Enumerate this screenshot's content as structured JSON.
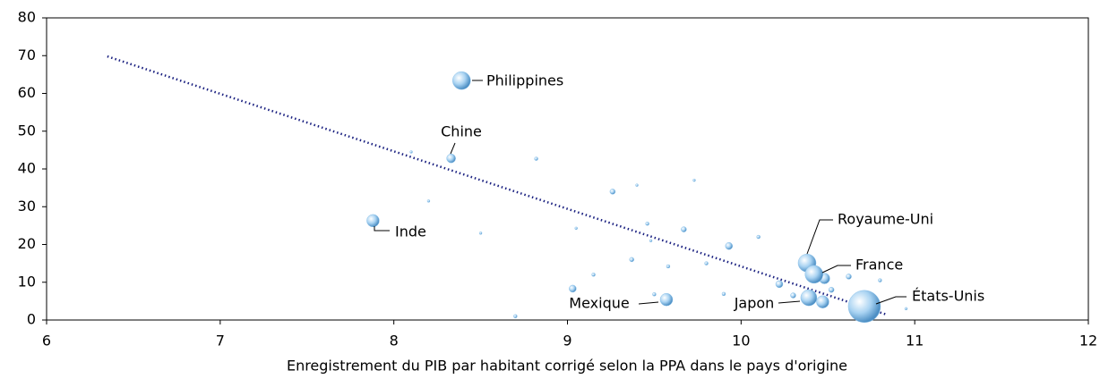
{
  "chart_data": {
    "type": "scatter",
    "x_label": "Enregistrement du PIB par habitant corrigé selon la PPA dans le pays d'origine",
    "xlim": [
      6,
      12
    ],
    "xticks": [
      6,
      7,
      8,
      9,
      10,
      11,
      12
    ],
    "ylim": [
      0,
      80
    ],
    "yticks": [
      0,
      10,
      20,
      30,
      40,
      50,
      60,
      70,
      80
    ],
    "color": "#8fc3ea",
    "trend_color": "#1a2080",
    "trend": {
      "x": [
        6.35,
        10.84
      ],
      "y": [
        69.8,
        1.4
      ]
    },
    "labels": [
      "Philippines",
      "Chine",
      "Inde",
      "Mexique",
      "Japon",
      "Royaume-Uni",
      "France",
      "États-Unis",
      null,
      null,
      null,
      null,
      null,
      null,
      null,
      null,
      null,
      null,
      null,
      null,
      null,
      null,
      null,
      null,
      null,
      null,
      null,
      null,
      null,
      null,
      null,
      null,
      null,
      null,
      null,
      null,
      null
    ],
    "x": [
      8.39,
      8.33,
      7.88,
      9.57,
      10.39,
      10.38,
      10.42,
      10.71,
      9.26,
      9.4,
      8.82,
      9.03,
      9.48,
      9.46,
      9.58,
      9.67,
      9.73,
      9.93,
      10.1,
      10.22,
      10.62,
      10.48,
      10.47,
      10.52,
      9.37,
      9.15,
      9.5,
      8.7,
      9.9,
      10.8,
      10.95,
      8.5,
      9.8,
      10.3,
      8.2,
      8.1,
      9.05
    ],
    "y": [
      63.4,
      42.8,
      26.3,
      5.4,
      5.9,
      15.1,
      12.1,
      3.6,
      34,
      35.7,
      42.7,
      8.3,
      21,
      25.5,
      14.2,
      24,
      37,
      19.6,
      22,
      9.5,
      11.5,
      11,
      4.8,
      8,
      16,
      12,
      6.8,
      1,
      6.9,
      10.5,
      3,
      23,
      15,
      6.5,
      31.5,
      44.5,
      24.3
    ],
    "sizes": [
      10,
      5,
      7,
      7,
      9,
      10,
      10,
      18,
      3,
      1.5,
      2,
      4,
      1.5,
      2,
      2,
      3,
      1.5,
      4,
      2,
      4,
      3,
      6,
      7,
      3,
      2.5,
      2,
      2,
      2,
      2,
      2,
      1.5,
      1.5,
      2,
      3,
      1.5,
      1.5,
      1.5
    ]
  }
}
